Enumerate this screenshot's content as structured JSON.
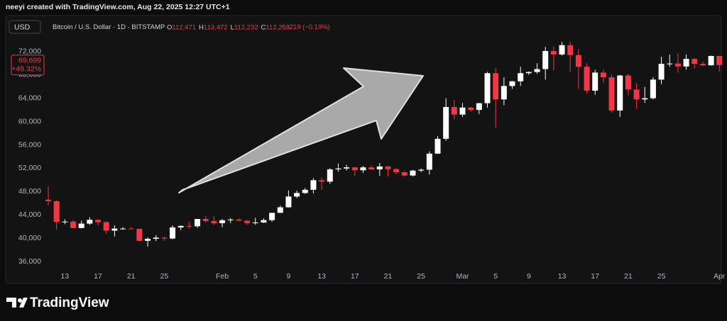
{
  "header": {
    "caption": "neeyi created with TradingView.com, Aug 22, 2025 12:27 UTC+1",
    "currency": "USD",
    "symbol": "Bitcoin / U.S. Dollar · 1D · BITSTAMP",
    "ohlc": [
      {
        "key": "O",
        "value": "112,471"
      },
      {
        "key": "H",
        "value": "113,472"
      },
      {
        "key": "L",
        "value": "112,232"
      },
      {
        "key": "C",
        "value": "112,253"
      }
    ],
    "change": "−219 (−0.19%)"
  },
  "footer": {
    "brand": "TradingView"
  },
  "chart_data": {
    "type": "candlestick",
    "categories": [
      null,
      null,
      "13",
      null,
      null,
      null,
      "17",
      null,
      null,
      null,
      "21",
      null,
      null,
      null,
      "25",
      null,
      null,
      null,
      null,
      null,
      null,
      "Feb",
      null,
      null,
      null,
      "5",
      null,
      null,
      null,
      "9",
      null,
      null,
      null,
      "13",
      null,
      null,
      null,
      "17",
      null,
      null,
      null,
      "21",
      null,
      null,
      null,
      "25",
      null,
      null,
      null,
      null,
      "Mar",
      null,
      null,
      null,
      "5",
      null,
      null,
      null,
      "9",
      null,
      null,
      null,
      "13",
      null,
      null,
      null,
      "17",
      null,
      null,
      null,
      "21",
      null,
      null,
      null,
      "25",
      null,
      null,
      null,
      null,
      null,
      null,
      "Apr"
    ],
    "open": [
      46600,
      46350,
      42800,
      42850,
      41750,
      42500,
      43150,
      42750,
      41300,
      41650,
      41650,
      41600,
      39550,
      39900,
      40100,
      39950,
      41850,
      42100,
      42050,
      43300,
      42950,
      42580,
      43080,
      43200,
      43000,
      42600,
      42700,
      43100,
      44350,
      45300,
      47150,
      47750,
      48300,
      49950,
      49700,
      51800,
      51950,
      52150,
      51650,
      52150,
      51800,
      52300,
      51850,
      51300,
      50750,
      51600,
      51750,
      54500,
      57050,
      62500,
      61200,
      62400,
      62000,
      63150,
      68300,
      63800,
      66100,
      66900,
      68300,
      68500,
      69000,
      72100,
      71500,
      73100,
      71400,
      69400,
      65300,
      68400,
      67600,
      61900,
      67900,
      65500,
      63800,
      64000,
      67200,
      69900,
      69950,
      69450,
      70750,
      69900,
      69650,
      71250
    ],
    "high": [
      48900,
      46500,
      43250,
      43100,
      43000,
      43600,
      43200,
      42950,
      42200,
      41900,
      41900,
      41650,
      40150,
      40550,
      40300,
      42200,
      42200,
      42850,
      43300,
      43850,
      43750,
      43300,
      43450,
      43400,
      43100,
      43500,
      43400,
      44300,
      45600,
      48200,
      48150,
      48600,
      50300,
      50400,
      52000,
      52800,
      52600,
      52200,
      52400,
      52500,
      52900,
      52400,
      52000,
      51550,
      51700,
      51950,
      54900,
      57500,
      64000,
      63700,
      63200,
      62500,
      63200,
      68500,
      69200,
      67600,
      67000,
      69400,
      68600,
      70000,
      72800,
      72900,
      73650,
      73700,
      72400,
      70000,
      68900,
      68900,
      68100,
      68000,
      68200,
      66600,
      65900,
      67600,
      71100,
      71500,
      71700,
      71500,
      70900,
      70300,
      71300,
      71300
    ],
    "low": [
      45600,
      41500,
      42400,
      41700,
      41700,
      42300,
      42200,
      40700,
      40300,
      41450,
      41550,
      39450,
      38550,
      39500,
      39550,
      39800,
      41400,
      41650,
      41800,
      42700,
      42300,
      41900,
      42600,
      42900,
      42300,
      42300,
      42600,
      42800,
      44350,
      45250,
      46900,
      47600,
      47700,
      48300,
      49300,
      51400,
      51600,
      50650,
      51200,
      51700,
      50700,
      50600,
      50950,
      50550,
      50600,
      51300,
      50900,
      54450,
      56700,
      60400,
      60800,
      61700,
      61300,
      62400,
      59000,
      62800,
      65600,
      66100,
      68000,
      68200,
      67200,
      68800,
      71300,
      68500,
      65600,
      64800,
      64600,
      66600,
      61500,
      60800,
      64500,
      62200,
      63200,
      63800,
      66400,
      69400,
      68400,
      68900,
      69100,
      69500,
      69600,
      68500
    ],
    "close": [
      46350,
      42800,
      42850,
      41750,
      42500,
      43150,
      42750,
      41300,
      41650,
      41650,
      41600,
      39550,
      39900,
      40100,
      39950,
      41850,
      42100,
      42050,
      43300,
      42950,
      42580,
      43080,
      43200,
      43000,
      42600,
      42700,
      43100,
      44350,
      45300,
      47150,
      47750,
      48300,
      49950,
      49700,
      51800,
      51950,
      52150,
      51650,
      52150,
      51800,
      52300,
      51850,
      51300,
      50750,
      51600,
      51750,
      54500,
      57050,
      62500,
      61200,
      62400,
      62000,
      63150,
      68300,
      63800,
      66100,
      66900,
      68300,
      68500,
      69000,
      72100,
      71500,
      73100,
      71400,
      69400,
      65300,
      68400,
      67600,
      61900,
      67900,
      65500,
      63800,
      64000,
      67200,
      69900,
      69950,
      69450,
      70750,
      69900,
      69650,
      71250,
      69699
    ],
    "up_color": "#ffffff",
    "down_color": "#f23645",
    "ylim": [
      32850,
      73800
    ],
    "yticks": [
      {
        "value": 36000,
        "label": "36,000"
      },
      {
        "value": 40000,
        "label": "40,000"
      },
      {
        "value": 44000,
        "label": "44,000"
      },
      {
        "value": 48000,
        "label": "48,000"
      },
      {
        "value": 52000,
        "label": "52,000"
      },
      {
        "value": 56000,
        "label": "56,000"
      },
      {
        "value": 60000,
        "label": "60,000"
      },
      {
        "value": 64000,
        "label": "64,000"
      },
      {
        "value": 68000,
        "label": "68,000"
      },
      {
        "value": 72000,
        "label": "72,000"
      }
    ],
    "last_price": {
      "value": 69699,
      "label": "69,699",
      "change": "+49.32%"
    }
  }
}
